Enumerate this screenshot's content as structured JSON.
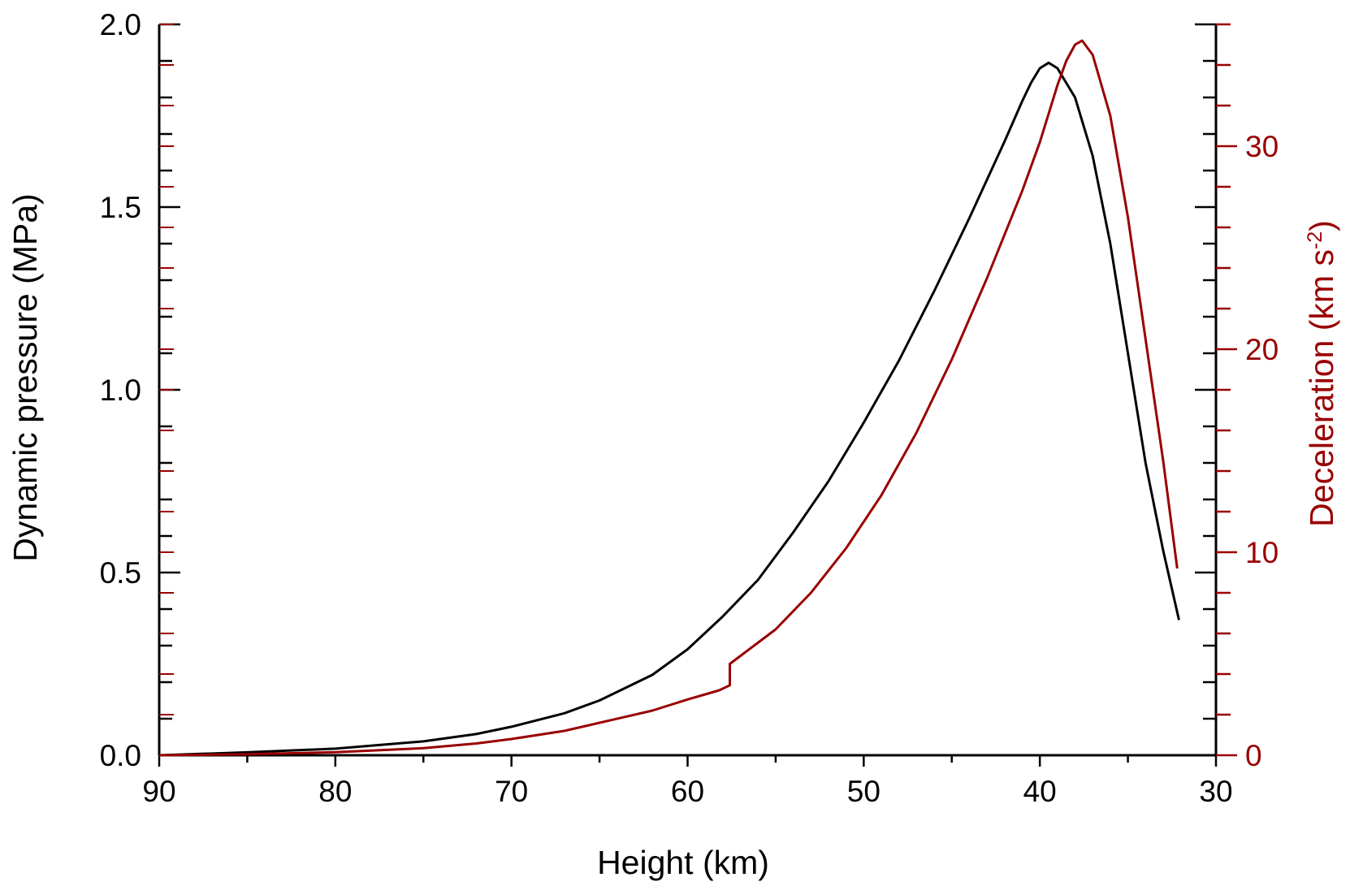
{
  "chart_data": {
    "type": "line",
    "xlabel": "Height (km)",
    "x_reversed": true,
    "xlim": [
      90,
      30
    ],
    "x_ticks": [
      "90",
      "80",
      "70",
      "60",
      "50",
      "40",
      "30"
    ],
    "y_left": {
      "label": "Dynamic pressure (MPa)",
      "lim": [
        0,
        2.0
      ],
      "ticks": [
        "0.0",
        "0.5",
        "1.0",
        "1.5",
        "2.0"
      ],
      "color": "#000000"
    },
    "y_right": {
      "label_main": "Deceleration (km s",
      "label_sup": "-2",
      "label_end": ")",
      "lim": [
        0,
        36
      ],
      "ticks": [
        "0",
        "10",
        "20",
        "30"
      ],
      "color": "#990000"
    },
    "grid": false,
    "series": [
      {
        "axis": "left",
        "color": "#000000",
        "points": [
          [
            90,
            0.0
          ],
          [
            85,
            0.008
          ],
          [
            80,
            0.018
          ],
          [
            75,
            0.038
          ],
          [
            72,
            0.058
          ],
          [
            70,
            0.078
          ],
          [
            67,
            0.115
          ],
          [
            65,
            0.15
          ],
          [
            62,
            0.22
          ],
          [
            60,
            0.29
          ],
          [
            58,
            0.38
          ],
          [
            56,
            0.48
          ],
          [
            54,
            0.61
          ],
          [
            52,
            0.75
          ],
          [
            50,
            0.91
          ],
          [
            48,
            1.08
          ],
          [
            46,
            1.27
          ],
          [
            44,
            1.47
          ],
          [
            42,
            1.68
          ],
          [
            41,
            1.79
          ],
          [
            40.5,
            1.84
          ],
          [
            40,
            1.88
          ],
          [
            39.5,
            1.895
          ],
          [
            39,
            1.88
          ],
          [
            38,
            1.8
          ],
          [
            37,
            1.64
          ],
          [
            36,
            1.4
          ],
          [
            35,
            1.1
          ],
          [
            34,
            0.8
          ],
          [
            33,
            0.56
          ],
          [
            32.1,
            0.37
          ]
        ]
      },
      {
        "axis": "right",
        "color": "#990000",
        "points": [
          [
            90,
            0.0
          ],
          [
            85,
            0.05
          ],
          [
            80,
            0.15
          ],
          [
            75,
            0.35
          ],
          [
            72,
            0.58
          ],
          [
            70,
            0.8
          ],
          [
            67,
            1.2
          ],
          [
            65,
            1.6
          ],
          [
            62,
            2.2
          ],
          [
            60,
            2.75
          ],
          [
            58.6,
            3.1
          ],
          [
            58.2,
            3.2
          ],
          [
            57.6,
            3.45
          ],
          [
            57.6,
            4.5
          ],
          [
            55,
            6.2
          ],
          [
            53,
            8.0
          ],
          [
            51,
            10.2
          ],
          [
            49,
            12.8
          ],
          [
            47,
            15.9
          ],
          [
            45,
            19.5
          ],
          [
            43,
            23.5
          ],
          [
            41,
            27.8
          ],
          [
            40,
            30.2
          ],
          [
            39,
            33.0
          ],
          [
            38.5,
            34.2
          ],
          [
            38,
            35.0
          ],
          [
            37.6,
            35.2
          ],
          [
            37,
            34.5
          ],
          [
            36,
            31.5
          ],
          [
            35,
            26.5
          ],
          [
            34,
            20.5
          ],
          [
            33,
            14.5
          ],
          [
            32.2,
            9.2
          ]
        ]
      }
    ]
  }
}
